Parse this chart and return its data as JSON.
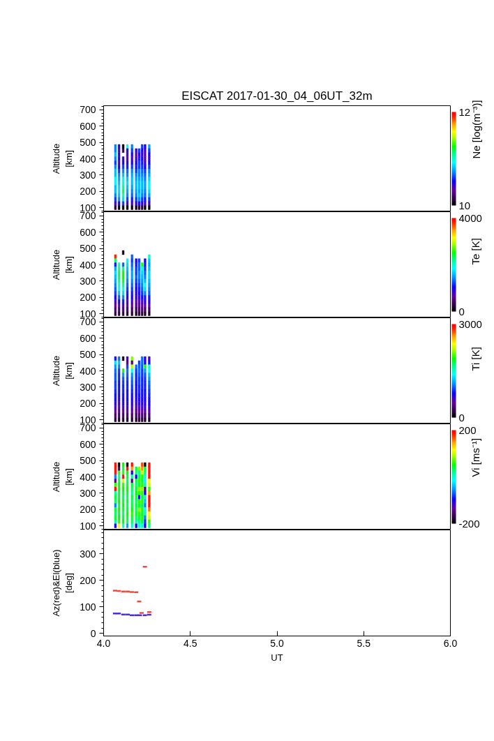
{
  "chart_data": [
    {
      "type": "scatter",
      "title": "EISCAT 2017-01-30_04_06UT_32m",
      "ylabel": "Altitude\n[km]",
      "clabel": "Ne [log(m⁻³)]",
      "marker": "square",
      "xlim": [
        4,
        6
      ],
      "ylim": [
        75,
        725
      ],
      "yticks": [
        100,
        200,
        300,
        400,
        500,
        600,
        700
      ],
      "tick_labels": "y",
      "clim": [
        10,
        12
      ],
      "cticks": [
        10,
        12
      ],
      "x": [
        4.068,
        4.068,
        4.068,
        4.068,
        4.068,
        4.068,
        4.068,
        4.068,
        4.068,
        4.068,
        4.068,
        4.068,
        4.068,
        4.068,
        4.068,
        4.068,
        4.089,
        4.089,
        4.089,
        4.089,
        4.089,
        4.089,
        4.089,
        4.089,
        4.089,
        4.089,
        4.089,
        4.089,
        4.089,
        4.089,
        4.089,
        4.089,
        4.113,
        4.113,
        4.113,
        4.113,
        4.113,
        4.113,
        4.113,
        4.113,
        4.113,
        4.113,
        4.113,
        4.113,
        4.113,
        4.113,
        4.113,
        4.137,
        4.137,
        4.137,
        4.137,
        4.137,
        4.137,
        4.137,
        4.137,
        4.137,
        4.137,
        4.137,
        4.137,
        4.137,
        4.137,
        4.137,
        4.137,
        4.164,
        4.164,
        4.164,
        4.164,
        4.164,
        4.164,
        4.164,
        4.164,
        4.164,
        4.164,
        4.164,
        4.164,
        4.164,
        4.164,
        4.164,
        4.164,
        4.188,
        4.188,
        4.188,
        4.188,
        4.188,
        4.188,
        4.188,
        4.188,
        4.188,
        4.188,
        4.188,
        4.188,
        4.188,
        4.188,
        4.188,
        4.205,
        4.205,
        4.205,
        4.205,
        4.205,
        4.205,
        4.205,
        4.205,
        4.205,
        4.205,
        4.205,
        4.205,
        4.205,
        4.205,
        4.205,
        4.222,
        4.222,
        4.222,
        4.222,
        4.222,
        4.222,
        4.222,
        4.222,
        4.222,
        4.222,
        4.222,
        4.222,
        4.222,
        4.222,
        4.222,
        4.222,
        4.239,
        4.239,
        4.239,
        4.239,
        4.239,
        4.239,
        4.239,
        4.239,
        4.239,
        4.239,
        4.239,
        4.239,
        4.239,
        4.239,
        4.239,
        4.239,
        4.263,
        4.263,
        4.263,
        4.263,
        4.263,
        4.263,
        4.263,
        4.263,
        4.263,
        4.263,
        4.263,
        4.263,
        4.263,
        4.263,
        4.263,
        4.263
      ],
      "values": [
        475,
        450,
        425,
        400,
        375,
        350,
        325,
        300,
        275,
        250,
        225,
        200,
        175,
        150,
        125,
        100,
        475,
        450,
        425,
        400,
        375,
        350,
        325,
        300,
        275,
        250,
        225,
        200,
        175,
        150,
        125,
        100,
        475,
        450,
        400,
        375,
        350,
        325,
        300,
        275,
        250,
        225,
        200,
        175,
        150,
        125,
        100,
        475,
        450,
        425,
        400,
        375,
        350,
        325,
        300,
        275,
        250,
        225,
        200,
        175,
        150,
        125,
        100,
        475,
        450,
        425,
        400,
        375,
        350,
        325,
        300,
        275,
        250,
        225,
        200,
        175,
        150,
        125,
        100,
        450,
        425,
        400,
        375,
        350,
        325,
        300,
        275,
        250,
        225,
        200,
        175,
        150,
        125,
        100,
        450,
        425,
        400,
        375,
        350,
        325,
        300,
        275,
        250,
        225,
        200,
        175,
        150,
        125,
        100,
        475,
        450,
        425,
        400,
        375,
        350,
        325,
        300,
        275,
        250,
        225,
        200,
        175,
        150,
        125,
        100,
        475,
        450,
        425,
        400,
        375,
        350,
        325,
        300,
        275,
        250,
        225,
        200,
        175,
        150,
        125,
        100,
        475,
        450,
        425,
        400,
        375,
        350,
        325,
        300,
        275,
        250,
        225,
        200,
        175,
        150,
        125,
        100
      ],
      "cvalues": [
        10.7,
        10.7,
        10.8,
        10.7,
        10.6,
        10.7,
        10.8,
        10.8,
        10.9,
        10.9,
        10.8,
        10.8,
        10.7,
        10.6,
        10.4,
        10.1,
        10.5,
        10.4,
        10.45,
        10.5,
        10.4,
        10.5,
        10.6,
        10.7,
        10.75,
        10.8,
        10.85,
        10.85,
        10.8,
        10.7,
        10.5,
        10.0,
        10.0,
        10.15,
        10.45,
        10.5,
        10.6,
        10.7,
        10.8,
        10.9,
        11.0,
        11.1,
        11.15,
        11.05,
        10.85,
        10.6,
        10.0,
        10.9,
        10.45,
        10.4,
        10.35,
        10.45,
        10.55,
        10.65,
        10.7,
        10.8,
        10.85,
        10.8,
        10.75,
        10.7,
        10.6,
        10.4,
        10.0,
        10.7,
        10.6,
        10.5,
        10.4,
        10.5,
        10.6,
        10.7,
        10.75,
        10.8,
        10.8,
        10.75,
        10.7,
        10.65,
        10.55,
        10.4,
        10.0,
        10.45,
        10.35,
        10.4,
        10.5,
        10.55,
        10.6,
        10.7,
        10.75,
        10.8,
        10.8,
        10.75,
        10.7,
        10.6,
        10.45,
        10.05,
        10.6,
        10.5,
        10.55,
        10.6,
        10.6,
        10.7,
        10.7,
        10.75,
        10.8,
        10.8,
        10.75,
        10.8,
        10.7,
        10.5,
        10.1,
        10.6,
        10.5,
        10.45,
        10.5,
        10.55,
        10.6,
        10.65,
        10.7,
        10.75,
        10.8,
        10.8,
        10.75,
        10.7,
        10.6,
        10.45,
        10.1,
        10.5,
        10.4,
        10.35,
        10.3,
        10.4,
        10.5,
        10.6,
        10.65,
        10.7,
        10.75,
        10.75,
        10.7,
        10.65,
        10.55,
        10.4,
        10.0,
        10.75,
        10.6,
        10.5,
        10.45,
        10.5,
        10.6,
        10.7,
        10.75,
        10.85,
        10.9,
        10.9,
        10.85,
        10.75,
        10.6,
        10.4,
        10.0
      ]
    },
    {
      "type": "scatter",
      "ylabel": "Altitude\n[km]",
      "clabel": "Te [K]",
      "marker": "square",
      "xlim": [
        4,
        6
      ],
      "ylim": [
        75,
        725
      ],
      "yticks": [
        100,
        200,
        300,
        400,
        500,
        600,
        700
      ],
      "tick_labels": "y",
      "clim": [
        0,
        4000
      ],
      "cticks": [
        0,
        4000
      ],
      "x": [
        4.068,
        4.068,
        4.068,
        4.068,
        4.068,
        4.068,
        4.068,
        4.068,
        4.068,
        4.068,
        4.068,
        4.068,
        4.068,
        4.068,
        4.068,
        4.089,
        4.089,
        4.089,
        4.089,
        4.089,
        4.089,
        4.089,
        4.089,
        4.089,
        4.089,
        4.089,
        4.089,
        4.089,
        4.113,
        4.113,
        4.113,
        4.113,
        4.113,
        4.113,
        4.113,
        4.113,
        4.113,
        4.113,
        4.113,
        4.113,
        4.113,
        4.113,
        4.137,
        4.137,
        4.137,
        4.137,
        4.137,
        4.137,
        4.137,
        4.137,
        4.137,
        4.137,
        4.137,
        4.137,
        4.137,
        4.137,
        4.164,
        4.164,
        4.164,
        4.164,
        4.164,
        4.164,
        4.164,
        4.164,
        4.164,
        4.164,
        4.164,
        4.164,
        4.164,
        4.164,
        4.164,
        4.188,
        4.188,
        4.188,
        4.188,
        4.188,
        4.188,
        4.188,
        4.188,
        4.188,
        4.188,
        4.188,
        4.188,
        4.188,
        4.188,
        4.205,
        4.205,
        4.205,
        4.205,
        4.205,
        4.205,
        4.205,
        4.205,
        4.205,
        4.205,
        4.205,
        4.205,
        4.205,
        4.205,
        4.222,
        4.222,
        4.222,
        4.222,
        4.222,
        4.222,
        4.222,
        4.222,
        4.222,
        4.222,
        4.222,
        4.222,
        4.222,
        4.239,
        4.239,
        4.239,
        4.239,
        4.239,
        4.239,
        4.239,
        4.239,
        4.239,
        4.239,
        4.239,
        4.239,
        4.239,
        4.239,
        4.263,
        4.263,
        4.263,
        4.263,
        4.263,
        4.263,
        4.263,
        4.263,
        4.263,
        4.263,
        4.263,
        4.263,
        4.263,
        4.263,
        4.263
      ],
      "values": [
        450,
        425,
        400,
        375,
        350,
        325,
        300,
        275,
        250,
        225,
        200,
        175,
        150,
        125,
        100,
        400,
        375,
        350,
        325,
        300,
        275,
        250,
        225,
        200,
        175,
        150,
        125,
        100,
        475,
        400,
        375,
        350,
        325,
        300,
        275,
        250,
        225,
        200,
        175,
        150,
        125,
        100,
        425,
        400,
        375,
        350,
        325,
        300,
        275,
        250,
        225,
        200,
        175,
        150,
        125,
        100,
        450,
        425,
        400,
        375,
        350,
        325,
        300,
        275,
        250,
        225,
        200,
        175,
        150,
        125,
        100,
        425,
        400,
        375,
        350,
        325,
        300,
        275,
        250,
        225,
        200,
        175,
        150,
        125,
        100,
        425,
        400,
        375,
        350,
        325,
        300,
        275,
        250,
        225,
        200,
        175,
        150,
        125,
        100,
        400,
        375,
        350,
        325,
        300,
        275,
        250,
        225,
        200,
        175,
        150,
        125,
        100,
        425,
        400,
        375,
        350,
        325,
        300,
        275,
        250,
        225,
        200,
        175,
        150,
        125,
        100,
        450,
        425,
        400,
        375,
        350,
        325,
        300,
        275,
        250,
        225,
        200,
        175,
        150,
        125,
        100
      ],
      "cvalues": [
        3800,
        2300,
        1100,
        1500,
        1700,
        1600,
        1500,
        1400,
        1300,
        1200,
        1000,
        800,
        600,
        400,
        250,
        2000,
        2200,
        2300,
        2300,
        2200,
        2000,
        1800,
        1600,
        1300,
        1000,
        700,
        450,
        250,
        100,
        1300,
        2200,
        2500,
        2500,
        2400,
        2200,
        1900,
        1700,
        1400,
        1100,
        750,
        450,
        250,
        1800,
        1700,
        1600,
        1500,
        1500,
        1400,
        1300,
        1200,
        1100,
        950,
        800,
        600,
        400,
        200,
        1300,
        1200,
        1300,
        1400,
        1500,
        1500,
        1400,
        1300,
        1200,
        1100,
        1000,
        800,
        600,
        400,
        200,
        1000,
        1100,
        1200,
        1200,
        1300,
        1200,
        1100,
        1000,
        950,
        850,
        700,
        550,
        350,
        200,
        1200,
        1300,
        1300,
        1400,
        1400,
        1300,
        1200,
        1100,
        1000,
        900,
        750,
        550,
        350,
        200,
        2600,
        2000,
        1700,
        1600,
        1500,
        1400,
        1300,
        1200,
        1000,
        800,
        600,
        400,
        200,
        1000,
        1100,
        1200,
        1300,
        1400,
        1600,
        1900,
        1700,
        1400,
        1100,
        900,
        650,
        400,
        200,
        2000,
        1600,
        1500,
        1600,
        1700,
        1700,
        1600,
        1500,
        1400,
        1300,
        1100,
        900,
        650,
        400,
        200
      ]
    },
    {
      "type": "scatter",
      "ylabel": "Altitude\n[km]",
      "clabel": "Ti [K]",
      "marker": "square",
      "xlim": [
        4,
        6
      ],
      "ylim": [
        75,
        725
      ],
      "yticks": [
        100,
        200,
        300,
        400,
        500,
        600,
        700
      ],
      "tick_labels": "y",
      "clim": [
        0,
        3000
      ],
      "cticks": [
        0,
        3000
      ],
      "x": [
        4.068,
        4.068,
        4.068,
        4.068,
        4.068,
        4.068,
        4.068,
        4.068,
        4.068,
        4.068,
        4.068,
        4.068,
        4.068,
        4.068,
        4.068,
        4.068,
        4.089,
        4.089,
        4.089,
        4.089,
        4.089,
        4.089,
        4.089,
        4.089,
        4.089,
        4.089,
        4.089,
        4.089,
        4.089,
        4.089,
        4.089,
        4.089,
        4.113,
        4.113,
        4.113,
        4.113,
        4.113,
        4.113,
        4.113,
        4.113,
        4.113,
        4.113,
        4.113,
        4.113,
        4.113,
        4.113,
        4.137,
        4.137,
        4.137,
        4.137,
        4.137,
        4.137,
        4.137,
        4.137,
        4.137,
        4.137,
        4.137,
        4.137,
        4.137,
        4.137,
        4.137,
        4.137,
        4.164,
        4.164,
        4.164,
        4.164,
        4.164,
        4.164,
        4.164,
        4.164,
        4.164,
        4.164,
        4.164,
        4.164,
        4.164,
        4.164,
        4.164,
        4.164,
        4.188,
        4.188,
        4.188,
        4.188,
        4.188,
        4.188,
        4.188,
        4.188,
        4.188,
        4.188,
        4.188,
        4.188,
        4.188,
        4.188,
        4.205,
        4.205,
        4.205,
        4.205,
        4.205,
        4.205,
        4.205,
        4.205,
        4.205,
        4.205,
        4.205,
        4.205,
        4.205,
        4.205,
        4.205,
        4.222,
        4.222,
        4.222,
        4.222,
        4.222,
        4.222,
        4.222,
        4.222,
        4.222,
        4.222,
        4.222,
        4.222,
        4.222,
        4.222,
        4.222,
        4.222,
        4.239,
        4.239,
        4.239,
        4.239,
        4.239,
        4.239,
        4.239,
        4.239,
        4.239,
        4.239,
        4.239,
        4.239,
        4.239,
        4.239,
        4.239,
        4.239,
        4.263,
        4.263,
        4.263,
        4.263,
        4.263,
        4.263,
        4.263,
        4.263,
        4.263,
        4.263,
        4.263,
        4.263,
        4.263,
        4.263,
        4.263,
        4.263
      ],
      "values": [
        475,
        450,
        425,
        400,
        375,
        350,
        325,
        300,
        275,
        250,
        225,
        200,
        175,
        150,
        125,
        100,
        475,
        450,
        425,
        400,
        375,
        350,
        325,
        300,
        275,
        250,
        225,
        200,
        175,
        150,
        125,
        100,
        475,
        400,
        375,
        350,
        325,
        300,
        275,
        250,
        225,
        200,
        175,
        150,
        125,
        100,
        475,
        450,
        425,
        400,
        375,
        350,
        325,
        300,
        275,
        250,
        225,
        200,
        175,
        150,
        125,
        100,
        475,
        450,
        425,
        400,
        375,
        350,
        325,
        300,
        275,
        250,
        225,
        200,
        175,
        150,
        125,
        100,
        425,
        400,
        375,
        350,
        325,
        300,
        275,
        250,
        225,
        200,
        175,
        150,
        125,
        100,
        450,
        425,
        400,
        375,
        350,
        325,
        300,
        275,
        250,
        225,
        200,
        175,
        150,
        125,
        100,
        475,
        450,
        425,
        400,
        375,
        350,
        325,
        300,
        275,
        250,
        225,
        200,
        175,
        150,
        125,
        100,
        475,
        450,
        425,
        400,
        375,
        350,
        325,
        300,
        275,
        250,
        225,
        200,
        175,
        150,
        125,
        100,
        475,
        450,
        425,
        400,
        375,
        350,
        325,
        300,
        275,
        250,
        225,
        200,
        175,
        150,
        125,
        100
      ],
      "cvalues": [
        800,
        1300,
        1100,
        1000,
        950,
        950,
        900,
        900,
        850,
        800,
        750,
        700,
        600,
        450,
        300,
        150,
        1000,
        1200,
        1050,
        900,
        850,
        850,
        800,
        800,
        800,
        750,
        700,
        650,
        550,
        400,
        300,
        150,
        100,
        1900,
        1100,
        950,
        900,
        850,
        850,
        800,
        750,
        700,
        600,
        450,
        300,
        150,
        600,
        400,
        900,
        1000,
        950,
        900,
        850,
        850,
        800,
        800,
        750,
        700,
        600,
        450,
        300,
        150,
        2100,
        400,
        2200,
        1400,
        1100,
        1000,
        950,
        900,
        850,
        800,
        750,
        700,
        600,
        450,
        300,
        150,
        1000,
        900,
        850,
        850,
        800,
        800,
        750,
        750,
        700,
        650,
        550,
        400,
        300,
        150,
        900,
        950,
        1000,
        950,
        900,
        900,
        850,
        850,
        800,
        750,
        700,
        600,
        450,
        300,
        150,
        1000,
        1000,
        950,
        900,
        900,
        850,
        850,
        850,
        800,
        800,
        750,
        700,
        600,
        450,
        300,
        150,
        700,
        750,
        1900,
        1100,
        950,
        900,
        850,
        850,
        800,
        800,
        750,
        700,
        600,
        450,
        300,
        150,
        600,
        800,
        1500,
        1400,
        1200,
        1100,
        1000,
        950,
        900,
        850,
        800,
        750,
        650,
        500,
        350,
        150
      ]
    },
    {
      "type": "scatter",
      "ylabel": "Altitude\n[km]",
      "clabel": "Vi [ms⁻¹]",
      "marker": "square",
      "xlim": [
        4,
        6
      ],
      "ylim": [
        75,
        725
      ],
      "yticks": [
        100,
        200,
        300,
        400,
        500,
        600,
        700
      ],
      "tick_labels": "y",
      "clim": [
        -200,
        200
      ],
      "cticks": [
        {
          "value": -200,
          "label": "-200"
        },
        200
      ],
      "x": [
        4.068,
        4.068,
        4.068,
        4.068,
        4.068,
        4.068,
        4.068,
        4.068,
        4.068,
        4.068,
        4.068,
        4.068,
        4.068,
        4.068,
        4.068,
        4.068,
        4.089,
        4.089,
        4.089,
        4.089,
        4.089,
        4.089,
        4.089,
        4.089,
        4.089,
        4.089,
        4.089,
        4.089,
        4.089,
        4.089,
        4.089,
        4.089,
        4.113,
        4.113,
        4.113,
        4.113,
        4.113,
        4.113,
        4.113,
        4.113,
        4.113,
        4.113,
        4.113,
        4.113,
        4.113,
        4.113,
        4.113,
        4.113,
        4.137,
        4.137,
        4.137,
        4.137,
        4.137,
        4.137,
        4.137,
        4.137,
        4.137,
        4.137,
        4.137,
        4.137,
        4.137,
        4.137,
        4.137,
        4.137,
        4.164,
        4.164,
        4.164,
        4.164,
        4.164,
        4.164,
        4.164,
        4.164,
        4.164,
        4.164,
        4.164,
        4.164,
        4.164,
        4.164,
        4.164,
        4.164,
        4.188,
        4.188,
        4.188,
        4.188,
        4.188,
        4.188,
        4.188,
        4.188,
        4.188,
        4.188,
        4.188,
        4.188,
        4.188,
        4.188,
        4.188,
        4.205,
        4.205,
        4.205,
        4.205,
        4.205,
        4.205,
        4.205,
        4.205,
        4.205,
        4.205,
        4.205,
        4.205,
        4.205,
        4.205,
        4.205,
        4.222,
        4.222,
        4.222,
        4.222,
        4.222,
        4.222,
        4.222,
        4.222,
        4.222,
        4.222,
        4.222,
        4.222,
        4.222,
        4.222,
        4.222,
        4.222,
        4.239,
        4.239,
        4.239,
        4.239,
        4.239,
        4.239,
        4.239,
        4.239,
        4.239,
        4.239,
        4.239,
        4.239,
        4.239,
        4.239,
        4.239,
        4.239,
        4.263,
        4.263,
        4.263,
        4.263,
        4.263,
        4.263,
        4.263,
        4.263,
        4.263,
        4.263,
        4.263,
        4.263,
        4.263,
        4.263,
        4.263,
        4.263
      ],
      "values": [
        475,
        450,
        425,
        400,
        375,
        350,
        325,
        300,
        275,
        250,
        225,
        200,
        175,
        150,
        125,
        100,
        475,
        450,
        425,
        400,
        375,
        350,
        325,
        300,
        275,
        250,
        225,
        200,
        175,
        150,
        125,
        100,
        475,
        450,
        425,
        400,
        375,
        350,
        325,
        300,
        275,
        250,
        225,
        200,
        175,
        150,
        125,
        100,
        475,
        450,
        425,
        400,
        375,
        350,
        325,
        300,
        275,
        250,
        225,
        200,
        175,
        150,
        125,
        100,
        475,
        450,
        425,
        400,
        375,
        350,
        325,
        300,
        275,
        250,
        225,
        200,
        175,
        150,
        125,
        100,
        450,
        425,
        400,
        375,
        350,
        325,
        300,
        275,
        250,
        225,
        200,
        175,
        150,
        125,
        100,
        450,
        425,
        400,
        375,
        350,
        325,
        300,
        275,
        250,
        225,
        200,
        175,
        150,
        125,
        100,
        475,
        450,
        425,
        400,
        375,
        350,
        325,
        300,
        275,
        250,
        225,
        200,
        175,
        150,
        125,
        100,
        475,
        450,
        425,
        400,
        375,
        350,
        325,
        300,
        275,
        250,
        225,
        200,
        175,
        150,
        125,
        100,
        475,
        450,
        425,
        400,
        375,
        350,
        325,
        300,
        275,
        250,
        225,
        200,
        175,
        150,
        125,
        100
      ],
      "cvalues": [
        190,
        190,
        190,
        -60,
        -150,
        60,
        190,
        20,
        40,
        30,
        -60,
        40,
        30,
        40,
        20,
        -100,
        -200,
        -160,
        60,
        20,
        40,
        50,
        50,
        40,
        40,
        50,
        40,
        50,
        40,
        50,
        60,
        120,
        50,
        40,
        60,
        190,
        100,
        60,
        50,
        40,
        30,
        40,
        50,
        40,
        30,
        40,
        50,
        0,
        -200,
        190,
        50,
        40,
        30,
        40,
        50,
        40,
        30,
        40,
        30,
        40,
        50,
        40,
        30,
        -50,
        190,
        150,
        -100,
        20,
        -150,
        40,
        30,
        20,
        40,
        30,
        40,
        50,
        60,
        40,
        30,
        0,
        40,
        30,
        -100,
        40,
        30,
        40,
        50,
        40,
        30,
        40,
        30,
        40,
        30,
        20,
        -100,
        80,
        20,
        40,
        60,
        40,
        80,
        60,
        -100,
        60,
        40,
        80,
        60,
        40,
        20,
        0,
        170,
        150,
        100,
        60,
        40,
        60,
        80,
        60,
        40,
        60,
        40,
        60,
        40,
        60,
        40,
        0,
        -200,
        40,
        30,
        0,
        -20,
        20,
        -150,
        -100,
        20,
        -40,
        -60,
        -20,
        20,
        -60,
        -80,
        -100,
        190,
        190,
        190,
        190,
        120,
        100,
        60,
        150,
        190,
        190,
        190,
        160,
        120,
        100,
        60,
        20
      ]
    },
    {
      "type": "scatter",
      "xlabel": "UT",
      "ylabel": "Az(red)&El(blue)\n[deg]",
      "xlim": [
        4,
        6
      ],
      "ylim": [
        -10,
        390
      ],
      "xticks": [
        {
          "value": 4,
          "label": "4.0"
        },
        {
          "value": 4.5,
          "label": "4.5"
        },
        {
          "value": 5,
          "label": "5.0"
        },
        {
          "value": 5.5,
          "label": "5.5"
        },
        {
          "value": 6,
          "label": "6.0"
        }
      ],
      "yticks": [
        0,
        100,
        200,
        300
      ],
      "series": [
        {
          "color": "#f04a3a",
          "x": [
            4.066,
            4.087,
            4.114,
            4.139,
            4.163,
            4.188,
            4.205,
            4.219,
            4.238,
            4.263
          ],
          "values": [
            161,
            160,
            158,
            158,
            156,
            155,
            120,
            77,
            251,
            80
          ]
        },
        {
          "color": "#4a2ee0",
          "x": [
            4.066,
            4.087,
            4.114,
            4.139,
            4.163,
            4.188,
            4.209,
            4.238,
            4.263
          ],
          "values": [
            75,
            75,
            71,
            71,
            68,
            68,
            68,
            68,
            70
          ]
        }
      ]
    }
  ]
}
